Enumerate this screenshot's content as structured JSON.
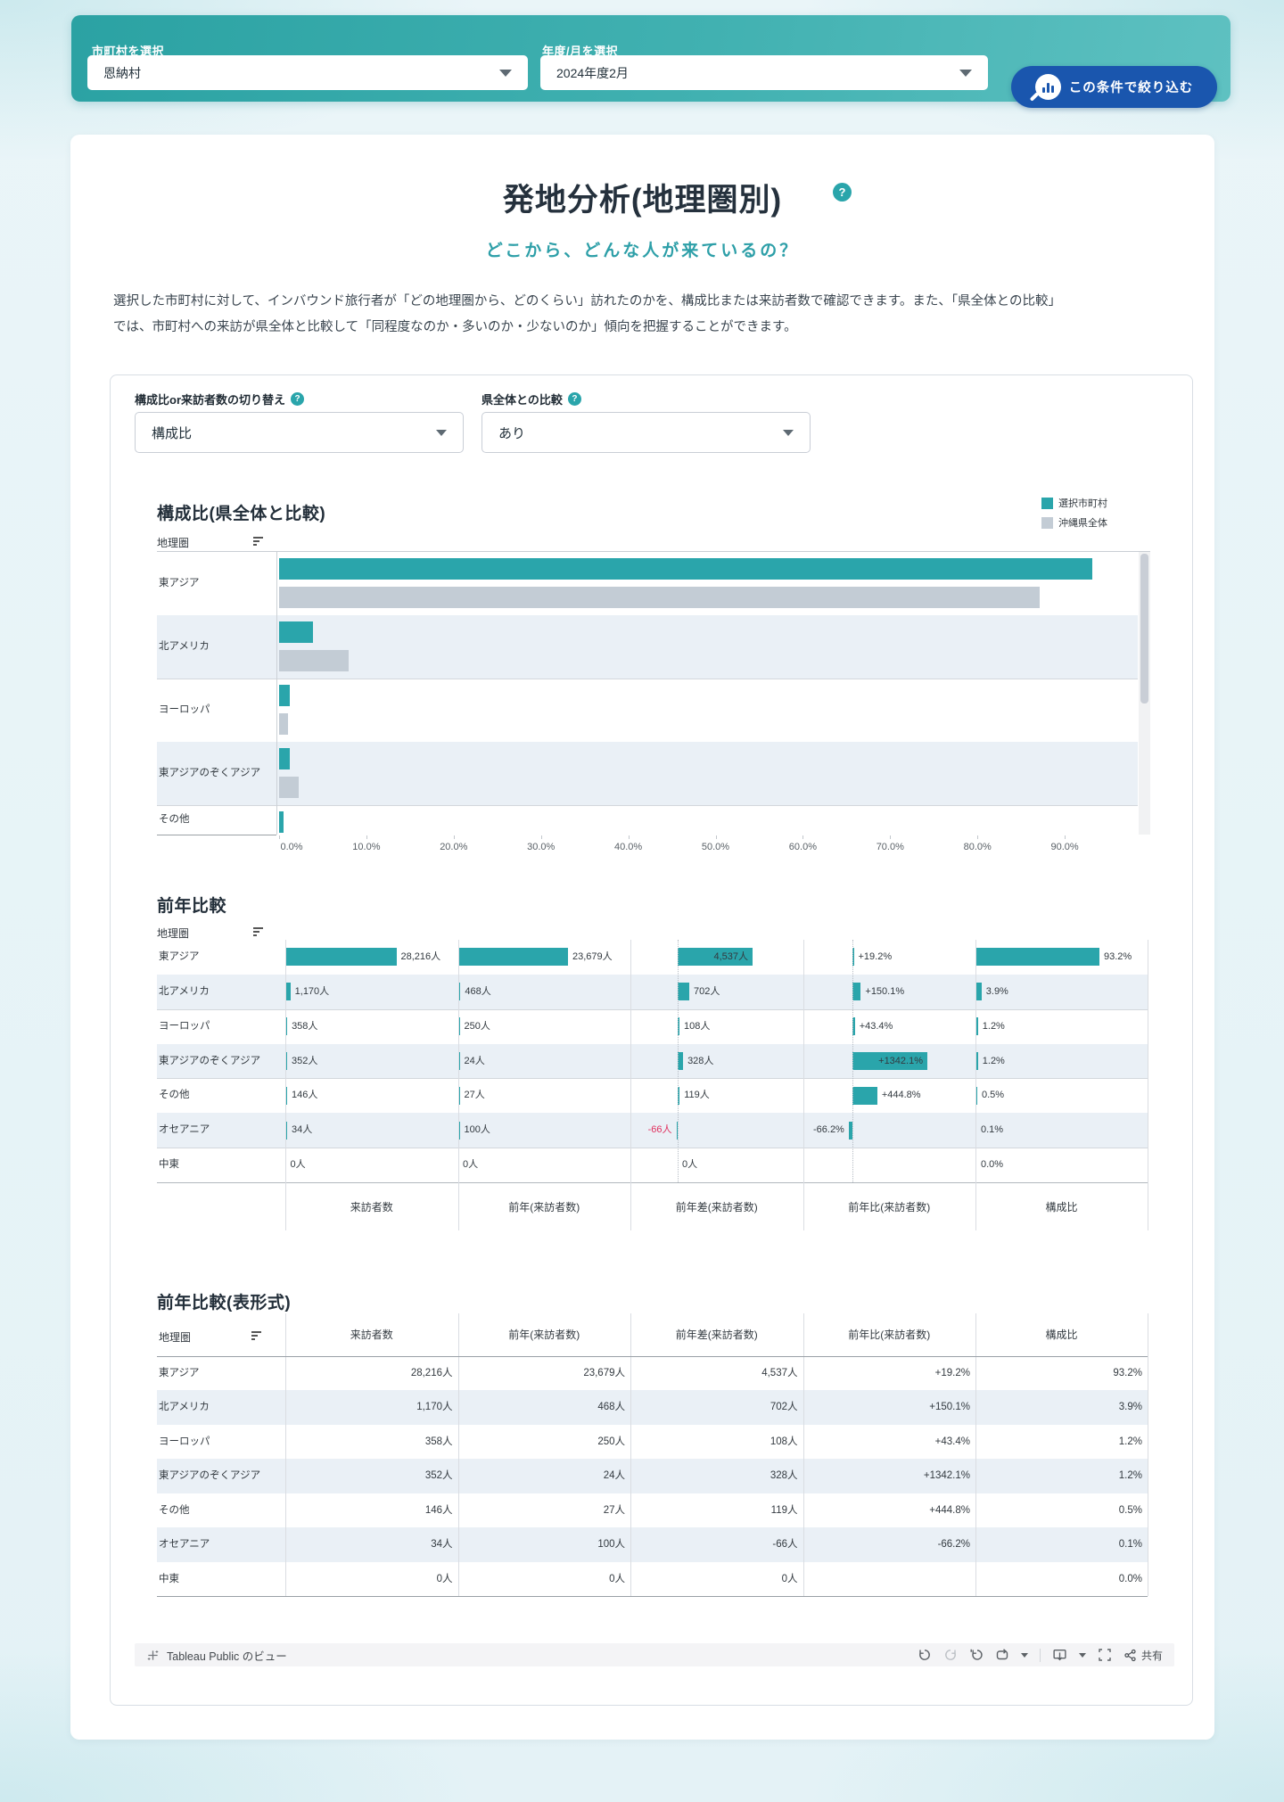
{
  "filter_bar": {
    "municipality_label": "市町村を選択",
    "municipality_value": "恩納村",
    "period_label": "年度/月を選択",
    "period_value": "2024年度2月",
    "submit_button": "この条件で絞り込む"
  },
  "header": {
    "title": "発地分析(地理圏別)",
    "help_badge": "?",
    "subtitle": "どこから、どんな人が来ているの？",
    "description_line1": "選択した市町村に対して、インバウンド旅行者が「どの地理圏から、どのくらい」訪れたのかを、構成比または来訪者数で確認できます。また、「県全体との比較」",
    "description_line2": "では、市町村への来訪が県全体と比較して「同程度なのか・多いのか・少ないのか」傾向を把握することができます。"
  },
  "controls": {
    "metric_label": "構成比or来訪者数の切り替え",
    "metric_value": "構成比",
    "comparison_label": "県全体との比較",
    "comparison_value": "あり",
    "help_badge": "?"
  },
  "colors": {
    "accent_teal": "#2AA5AB",
    "okinawa_gray": "#C3CCD5",
    "button_blue": "#1A56AE",
    "negative_red": "#E0315F"
  },
  "chart_data": [
    {
      "type": "bar",
      "orientation": "horizontal",
      "title": "構成比(県全体と比較)",
      "row_header": "地理圏",
      "legend": [
        "選択市町村",
        "沖縄県全体"
      ],
      "legend_position": "top-right",
      "x_ticks": [
        "0.0%",
        "10.0%",
        "20.0%",
        "30.0%",
        "40.0%",
        "50.0%",
        "60.0%",
        "70.0%",
        "80.0%",
        "90.0%"
      ],
      "xlim": [
        0,
        98
      ],
      "categories": [
        "東アジア",
        "北アメリカ",
        "ヨーロッパ",
        "東アジアのぞくアジア",
        "その他"
      ],
      "series": [
        {
          "name": "選択市町村",
          "values": [
            93.2,
            3.9,
            1.2,
            1.2,
            0.5
          ]
        },
        {
          "name": "沖縄県全体",
          "values": [
            87.1,
            8.0,
            1.0,
            2.2,
            null
          ]
        }
      ]
    },
    {
      "type": "bar",
      "orientation": "horizontal",
      "title": "前年比較",
      "row_header": "地理圏",
      "columns": [
        "来訪者数",
        "前年(来訪者数)",
        "前年差(来訪者数)",
        "前年比(来訪者数)",
        "構成比"
      ],
      "rows": [
        {
          "category": "東アジア",
          "visitors": 28216,
          "visitors_label": "28,216人",
          "prev": 23679,
          "prev_label": "23,679人",
          "diff": 4537,
          "diff_label": "4,537人",
          "ratio": 19.2,
          "ratio_label": "+19.2%",
          "share": 93.2,
          "share_label": "93.2%"
        },
        {
          "category": "北アメリカ",
          "visitors": 1170,
          "visitors_label": "1,170人",
          "prev": 468,
          "prev_label": "468人",
          "diff": 702,
          "diff_label": "702人",
          "ratio": 150.1,
          "ratio_label": "+150.1%",
          "share": 3.9,
          "share_label": "3.9%"
        },
        {
          "category": "ヨーロッパ",
          "visitors": 358,
          "visitors_label": "358人",
          "prev": 250,
          "prev_label": "250人",
          "diff": 108,
          "diff_label": "108人",
          "ratio": 43.4,
          "ratio_label": "+43.4%",
          "share": 1.2,
          "share_label": "1.2%"
        },
        {
          "category": "東アジアのぞくアジア",
          "visitors": 352,
          "visitors_label": "352人",
          "prev": 24,
          "prev_label": "24人",
          "diff": 328,
          "diff_label": "328人",
          "ratio": 1342.1,
          "ratio_label": "+1342.1%",
          "share": 1.2,
          "share_label": "1.2%"
        },
        {
          "category": "その他",
          "visitors": 146,
          "visitors_label": "146人",
          "prev": 27,
          "prev_label": "27人",
          "diff": 119,
          "diff_label": "119人",
          "ratio": 444.8,
          "ratio_label": "+444.8%",
          "share": 0.5,
          "share_label": "0.5%"
        },
        {
          "category": "オセアニア",
          "visitors": 34,
          "visitors_label": "34人",
          "prev": 100,
          "prev_label": "100人",
          "diff": -66,
          "diff_label": "-66人",
          "ratio": -66.2,
          "ratio_label": "-66.2%",
          "share": 0.1,
          "share_label": "0.1%"
        },
        {
          "category": "中東",
          "visitors": 0,
          "visitors_label": "0人",
          "prev": 0,
          "prev_label": "0人",
          "diff": 0,
          "diff_label": "0人",
          "ratio": null,
          "ratio_label": "",
          "share": 0,
          "share_label": "0.0%"
        }
      ]
    },
    {
      "type": "table",
      "title": "前年比較(表形式)",
      "columns": [
        "地理圏",
        "来訪者数",
        "前年(来訪者数)",
        "前年差(来訪者数)",
        "前年比(来訪者数)",
        "構成比"
      ],
      "rows": [
        [
          "東アジア",
          "28,216人",
          "23,679人",
          "4,537人",
          "+19.2%",
          "93.2%"
        ],
        [
          "北アメリカ",
          "1,170人",
          "468人",
          "702人",
          "+150.1%",
          "3.9%"
        ],
        [
          "ヨーロッパ",
          "358人",
          "250人",
          "108人",
          "+43.4%",
          "1.2%"
        ],
        [
          "東アジアのぞくアジア",
          "352人",
          "24人",
          "328人",
          "+1342.1%",
          "1.2%"
        ],
        [
          "その他",
          "146人",
          "27人",
          "119人",
          "+444.8%",
          "0.5%"
        ],
        [
          "オセアニア",
          "34人",
          "100人",
          "-66人",
          "-66.2%",
          "0.1%"
        ],
        [
          "中東",
          "0人",
          "0人",
          "0人",
          "",
          "0.0%"
        ]
      ]
    }
  ],
  "tableau_footer": {
    "view_label": "Tableau Public のビュー",
    "share_label": "共有"
  }
}
